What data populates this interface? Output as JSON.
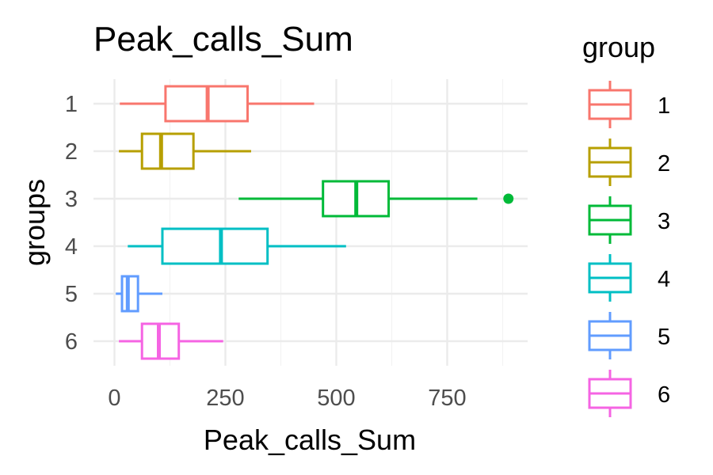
{
  "chart_data": {
    "type": "boxplot",
    "orientation": "horizontal",
    "title": "Peak_calls_Sum",
    "xlabel": "Peak_calls_Sum",
    "ylabel": "groups",
    "xlim": [
      -10,
      930
    ],
    "x_ticks": [
      0,
      250,
      500,
      750
    ],
    "x_tick_labels": [
      "0",
      "250",
      "500",
      "750"
    ],
    "categories": [
      "1",
      "2",
      "3",
      "4",
      "5",
      "6"
    ],
    "grid": true,
    "legend": {
      "title": "group",
      "position": "right",
      "entries": [
        "1",
        "2",
        "3",
        "4",
        "5",
        "6"
      ]
    },
    "series": [
      {
        "group": "1",
        "color": "#F8766D",
        "whisker_low": 12,
        "q1": 115,
        "median": 210,
        "q3": 300,
        "whisker_high": 450,
        "outliers": []
      },
      {
        "group": "2",
        "color": "#B79F00",
        "whisker_low": 10,
        "q1": 62,
        "median": 105,
        "q3": 178,
        "whisker_high": 308,
        "outliers": []
      },
      {
        "group": "3",
        "color": "#00BA38",
        "whisker_low": 280,
        "q1": 470,
        "median": 545,
        "q3": 618,
        "whisker_high": 818,
        "outliers": [
          888
        ]
      },
      {
        "group": "4",
        "color": "#00BFC4",
        "whisker_low": 30,
        "q1": 108,
        "median": 240,
        "q3": 345,
        "whisker_high": 522,
        "outliers": []
      },
      {
        "group": "5",
        "color": "#619CFF",
        "whisker_low": 3,
        "q1": 17,
        "median": 30,
        "q3": 53,
        "whisker_high": 108,
        "outliers": []
      },
      {
        "group": "6",
        "color": "#F564E3",
        "whisker_low": 10,
        "q1": 62,
        "median": 100,
        "q3": 145,
        "whisker_high": 245,
        "outliers": []
      }
    ]
  }
}
